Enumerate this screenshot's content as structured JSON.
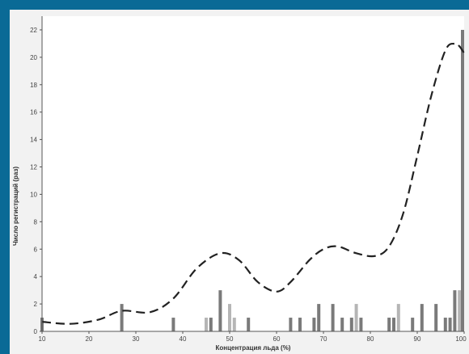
{
  "chart_data": {
    "type": "bar",
    "xlabel": "Концентрация льда (%)",
    "ylabel": "Число регистраций (раз)",
    "xlim": [
      10,
      100
    ],
    "ylim": [
      0,
      23
    ],
    "x_ticks": [
      10,
      20,
      30,
      40,
      50,
      60,
      70,
      80,
      90,
      100
    ],
    "y_ticks": [
      0,
      2,
      4,
      6,
      8,
      10,
      12,
      14,
      16,
      18,
      20,
      22
    ],
    "grid": false,
    "bars": [
      {
        "x": 10,
        "value": 1,
        "shade": "dark"
      },
      {
        "x": 27,
        "value": 2,
        "shade": "dark"
      },
      {
        "x": 38,
        "value": 1,
        "shade": "dark"
      },
      {
        "x": 45,
        "value": 1,
        "shade": "light"
      },
      {
        "x": 46,
        "value": 1,
        "shade": "dark"
      },
      {
        "x": 48,
        "value": 3,
        "shade": "dark"
      },
      {
        "x": 50,
        "value": 2,
        "shade": "light"
      },
      {
        "x": 51,
        "value": 1,
        "shade": "light"
      },
      {
        "x": 54,
        "value": 1,
        "shade": "dark"
      },
      {
        "x": 63,
        "value": 1,
        "shade": "dark"
      },
      {
        "x": 65,
        "value": 1,
        "shade": "dark"
      },
      {
        "x": 68,
        "value": 1,
        "shade": "dark"
      },
      {
        "x": 69,
        "value": 2,
        "shade": "dark"
      },
      {
        "x": 72,
        "value": 2,
        "shade": "dark"
      },
      {
        "x": 74,
        "value": 1,
        "shade": "dark"
      },
      {
        "x": 76,
        "value": 1,
        "shade": "dark"
      },
      {
        "x": 77,
        "value": 2,
        "shade": "light"
      },
      {
        "x": 78,
        "value": 1,
        "shade": "dark"
      },
      {
        "x": 84,
        "value": 1,
        "shade": "dark"
      },
      {
        "x": 85,
        "value": 1,
        "shade": "dark"
      },
      {
        "x": 86,
        "value": 2,
        "shade": "light"
      },
      {
        "x": 89,
        "value": 1,
        "shade": "dark"
      },
      {
        "x": 91,
        "value": 2,
        "shade": "dark"
      },
      {
        "x": 94,
        "value": 2,
        "shade": "dark"
      },
      {
        "x": 96,
        "value": 1,
        "shade": "dark"
      },
      {
        "x": 97,
        "value": 1,
        "shade": "dark"
      },
      {
        "x": 98,
        "value": 3,
        "shade": "dark"
      },
      {
        "x": 99,
        "value": 3,
        "shade": "light"
      },
      {
        "x": 100,
        "value": 22,
        "shade": "dark"
      }
    ],
    "density_curve": {
      "style": "dashed",
      "x": [
        10,
        16,
        22,
        27,
        33,
        38,
        43,
        48,
        52,
        56,
        60,
        63,
        67,
        70,
        73,
        77,
        81,
        84,
        87,
        90,
        93,
        96,
        98,
        99,
        100
      ],
      "y": [
        0.7,
        0.55,
        0.85,
        1.5,
        1.4,
        2.4,
        4.6,
        5.7,
        5.2,
        3.6,
        2.9,
        3.6,
        5.2,
        6.0,
        6.2,
        5.7,
        5.5,
        6.2,
        8.6,
        12.8,
        17.2,
        20.5,
        21.0,
        20.8,
        20.3
      ]
    },
    "colors": {
      "bar_dark": "#7a7a7a",
      "bar_light": "#b5b5b5",
      "curve": "#222222",
      "axis": "#555555",
      "plot_bg": "#ffffff"
    }
  }
}
